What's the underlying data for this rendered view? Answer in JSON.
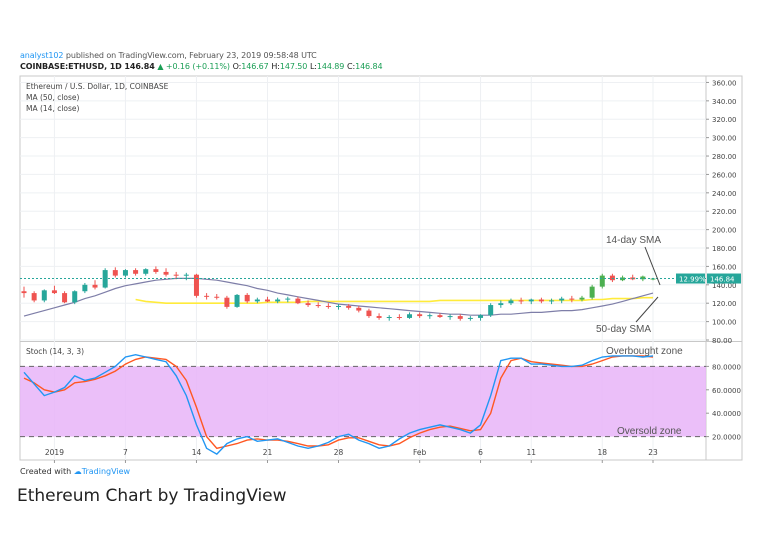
{
  "header": {
    "user": "analyst102",
    "published": "published on TradingView.com, February 23, 2019 09:58:48 UTC",
    "symbol": "COINBASE:ETHUSD, 1D",
    "last": "146.84",
    "change": "▲ +0.16 (+0.11%)",
    "o_label": "O:",
    "o": "146.67",
    "h_label": "H:",
    "h": "147.50",
    "l_label": "L:",
    "l": "144.89",
    "c_label": "C:",
    "c": "146.84"
  },
  "legend": {
    "title": "Ethereum / U.S. Dollar, 1D, COINBASE",
    "ma50": "MA (50, close)",
    "ma14": "MA (14, close)"
  },
  "annotations": {
    "sma14": "14-day SMA",
    "sma50": "50-day SMA",
    "overbought": "Overbought zone",
    "oversold": "Oversold zone"
  },
  "price_tags": {
    "percent": "12.99%",
    "price": "146.84"
  },
  "credit": {
    "prefix": "Created with",
    "brand": "TradingView"
  },
  "caption": "Ethereum Chart by TradingView",
  "colors": {
    "up": "#26a69a",
    "down": "#ef5350",
    "up_bright": "#4caf50",
    "ma50": "#ffeb3b",
    "ma14": "#7e7ea8",
    "stoch_k": "#2196f3",
    "stoch_d": "#ff5722",
    "stoch_band": "#e8b4f8"
  },
  "chart_data": [
    {
      "type": "candlestick",
      "title": "Ethereum / U.S. Dollar, 1D, COINBASE",
      "x_tick_labels": [
        "2019",
        "7",
        "14",
        "21",
        "28",
        "Feb",
        "6",
        "11",
        "18",
        "23"
      ],
      "x_tick_index": [
        3,
        10,
        17,
        24,
        31,
        39,
        45,
        50,
        57,
        62
      ],
      "y_ticks": [
        "80.00",
        "100.00",
        "120.00",
        "140.00",
        "160.00",
        "180.00",
        "200.00",
        "220.00",
        "240.00",
        "260.00",
        "280.00",
        "300.00",
        "320.00",
        "340.00",
        "360.00"
      ],
      "ylim": [
        80,
        367
      ],
      "last_price": 146.84,
      "candles": [
        [
          133,
          138,
          126,
          131
        ],
        [
          131,
          133,
          121,
          123
        ],
        [
          123,
          135,
          121,
          134
        ],
        [
          134,
          139,
          130,
          131
        ],
        [
          131,
          133,
          120,
          121
        ],
        [
          121,
          134,
          119,
          133
        ],
        [
          133,
          142,
          131,
          140
        ],
        [
          140,
          145,
          135,
          137
        ],
        [
          137,
          158,
          136,
          156
        ],
        [
          156,
          159,
          148,
          150
        ],
        [
          150,
          157,
          148,
          156
        ],
        [
          156,
          158,
          150,
          152
        ],
        [
          152,
          158,
          150,
          157
        ],
        [
          157,
          160,
          152,
          154
        ],
        [
          154,
          158,
          149,
          151
        ],
        [
          151,
          154,
          146,
          150
        ],
        [
          150,
          153,
          145,
          151
        ],
        [
          151,
          152,
          126,
          128
        ],
        [
          128,
          131,
          124,
          127
        ],
        [
          127,
          130,
          124,
          126
        ],
        [
          126,
          128,
          114,
          116
        ],
        [
          116,
          130,
          115,
          129
        ],
        [
          129,
          131,
          120,
          122
        ],
        [
          122,
          126,
          120,
          124
        ],
        [
          124,
          127,
          121,
          122
        ],
        [
          122,
          126,
          120,
          124
        ],
        [
          124,
          127,
          121,
          125
        ],
        [
          125,
          127,
          119,
          120
        ],
        [
          120,
          123,
          116,
          118
        ],
        [
          118,
          121,
          115,
          117
        ],
        [
          117,
          120,
          114,
          116
        ],
        [
          116,
          119,
          113,
          117
        ],
        [
          117,
          119,
          113,
          115
        ],
        [
          115,
          117,
          110,
          112
        ],
        [
          112,
          114,
          104,
          106
        ],
        [
          106,
          109,
          102,
          104
        ],
        [
          104,
          107,
          101,
          105
        ],
        [
          105,
          108,
          102,
          104
        ],
        [
          104,
          110,
          103,
          108
        ],
        [
          108,
          110,
          104,
          106
        ],
        [
          106,
          109,
          103,
          107
        ],
        [
          107,
          109,
          104,
          105
        ],
        [
          105,
          108,
          102,
          106
        ],
        [
          106,
          108,
          101,
          103
        ],
        [
          103,
          106,
          101,
          104
        ],
        [
          104,
          108,
          101,
          107
        ],
        [
          107,
          120,
          105,
          118
        ],
        [
          118,
          123,
          115,
          120
        ],
        [
          120,
          125,
          118,
          123
        ],
        [
          123,
          126,
          119,
          122
        ],
        [
          122,
          125,
          119,
          124
        ],
        [
          124,
          126,
          120,
          122
        ],
        [
          122,
          125,
          119,
          123
        ],
        [
          123,
          127,
          120,
          125
        ],
        [
          125,
          128,
          121,
          124
        ],
        [
          124,
          128,
          122,
          126
        ],
        [
          126,
          140,
          124,
          138
        ],
        [
          138,
          152,
          136,
          150
        ],
        [
          150,
          152,
          143,
          145
        ],
        [
          145,
          150,
          144,
          148
        ],
        [
          148,
          151,
          145,
          146
        ],
        [
          146,
          150,
          144,
          149
        ],
        [
          146.67,
          147.5,
          144.89,
          146.84
        ]
      ],
      "series": [
        {
          "name": "MA (50, close)",
          "color": "#ffeb3b",
          "values": [
            null,
            null,
            null,
            null,
            null,
            null,
            null,
            null,
            null,
            null,
            null,
            124,
            122,
            121,
            120,
            120,
            120,
            120,
            120,
            120,
            120,
            120,
            120,
            120,
            121,
            121,
            121,
            121,
            122,
            122,
            122,
            122,
            122,
            122,
            122,
            122,
            122,
            122,
            122,
            122,
            122,
            123,
            123,
            123,
            123,
            123,
            123,
            123,
            123,
            123,
            123,
            123,
            123,
            123,
            123,
            123,
            124,
            124,
            125,
            125,
            125,
            126,
            126
          ]
        },
        {
          "name": "MA (14, close)",
          "color": "#7e7ea8",
          "values": [
            106,
            109,
            112,
            115,
            118,
            121,
            125,
            128,
            132,
            136,
            139,
            141,
            143,
            145,
            146,
            147,
            147,
            147,
            146,
            145,
            143,
            141,
            139,
            136,
            134,
            131,
            129,
            127,
            125,
            123,
            121,
            119,
            118,
            117,
            116,
            115,
            114,
            113,
            112,
            111,
            110,
            109,
            108,
            108,
            107,
            107,
            107,
            108,
            108,
            109,
            110,
            110,
            111,
            112,
            112,
            113,
            115,
            117,
            119,
            122,
            125,
            128,
            131
          ]
        }
      ]
    },
    {
      "type": "line",
      "title": "Stoch (14, 3, 3)",
      "y_ticks": [
        "20.0000",
        "40.0000",
        "60.0000",
        "80.0000"
      ],
      "ylim": [
        0,
        100
      ],
      "bands": [
        20,
        80
      ],
      "series": [
        {
          "name": "%K",
          "color": "#2196f3",
          "values": [
            75,
            65,
            55,
            58,
            62,
            72,
            68,
            70,
            75,
            80,
            88,
            90,
            88,
            86,
            84,
            72,
            55,
            30,
            10,
            5,
            14,
            18,
            20,
            16,
            17,
            18,
            15,
            12,
            10,
            12,
            15,
            20,
            22,
            17,
            14,
            10,
            12,
            18,
            23,
            26,
            28,
            30,
            28,
            26,
            23,
            30,
            55,
            85,
            87,
            87,
            82,
            82,
            81,
            80,
            80,
            81,
            85,
            88,
            89,
            89,
            89,
            88,
            89
          ]
        },
        {
          "name": "%D",
          "color": "#ff5722",
          "values": [
            70,
            66,
            60,
            58,
            60,
            66,
            67,
            69,
            72,
            76,
            82,
            86,
            88,
            87,
            86,
            80,
            68,
            45,
            20,
            10,
            12,
            14,
            17,
            18,
            17,
            17,
            16,
            14,
            12,
            12,
            13,
            17,
            19,
            19,
            16,
            13,
            12,
            14,
            19,
            23,
            26,
            28,
            29,
            27,
            25,
            26,
            40,
            70,
            85,
            87,
            84,
            83,
            82,
            81,
            80,
            80,
            82,
            85,
            88,
            89,
            89,
            89,
            88
          ]
        }
      ]
    }
  ]
}
